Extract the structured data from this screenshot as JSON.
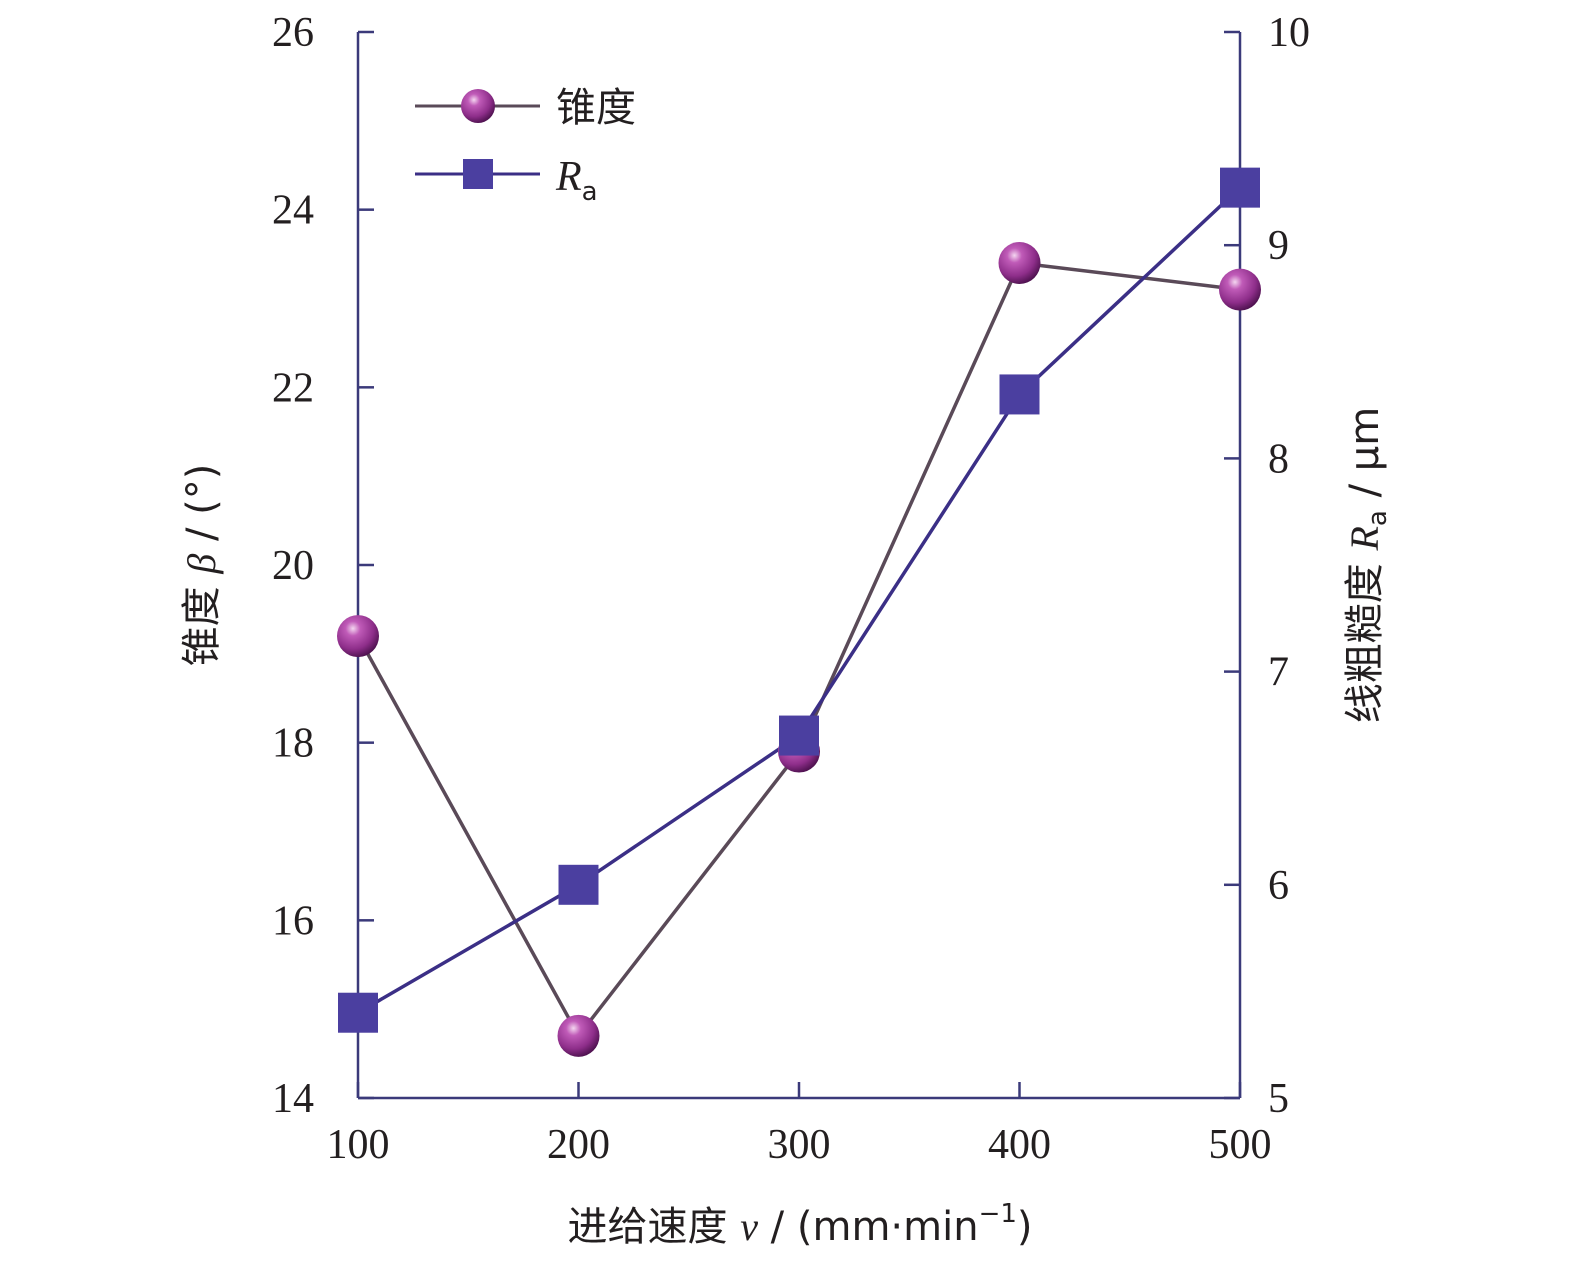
{
  "chart_data": {
    "type": "line",
    "x": [
      100,
      200,
      300,
      400,
      500
    ],
    "x_ticks": [
      "100",
      "200",
      "300",
      "400",
      "500"
    ],
    "xlim": [
      100,
      500
    ],
    "xlabel": {
      "text": "进给速度 ",
      "var": "v",
      "unit_open": " / (mm·min",
      "unit_sup": "−1",
      "unit_close": ")"
    },
    "y_left": {
      "label": {
        "text": "锥度 ",
        "var": "β",
        "unit": " / (°)"
      },
      "ylim": [
        14,
        26
      ],
      "ticks": [
        "14",
        "16",
        "18",
        "20",
        "22",
        "24",
        "26"
      ]
    },
    "y_right": {
      "label": {
        "text": "线粗糙度 ",
        "var": "R",
        "sub": "a",
        "unit": " / μm"
      },
      "ylim": [
        5,
        10
      ],
      "ticks": [
        "5",
        "6",
        "7",
        "8",
        "9",
        "10"
      ]
    },
    "series": [
      {
        "name": "锥度",
        "axis": "left",
        "marker": "sphere",
        "color": "#8e2e8a",
        "line_color": "#5a4a58",
        "values": [
          19.2,
          14.7,
          17.9,
          23.4,
          23.1
        ]
      },
      {
        "name_var": "R",
        "name_sub": "a",
        "axis": "right",
        "marker": "square",
        "color": "#4b3fa0",
        "line_color": "#3b2f86",
        "values": [
          5.4,
          6.0,
          6.7,
          8.3,
          9.27
        ]
      }
    ],
    "legend_position": "top-left",
    "grid": false,
    "axis_color": "#3b3a7a"
  }
}
